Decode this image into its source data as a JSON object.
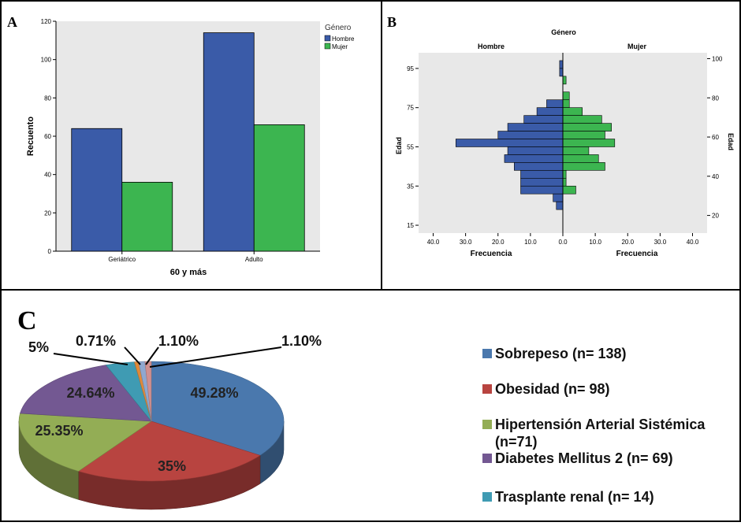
{
  "panels": {
    "a_letter": "A",
    "b_letter": "B",
    "c_letter": "C"
  },
  "chart_data": [
    {
      "type": "bar",
      "panel": "A",
      "categories": [
        "Geriátrico",
        "Adulto"
      ],
      "series": [
        {
          "name": "Hombre",
          "values": [
            64,
            114
          ],
          "color": "#3a5ba8"
        },
        {
          "name": "Mujer",
          "values": [
            36,
            66
          ],
          "color": "#3cb550"
        }
      ],
      "xlabel": "60 y más",
      "ylabel": "Recuento",
      "ylim": [
        0,
        120
      ],
      "yticks": [
        0,
        20,
        40,
        60,
        80,
        100,
        120
      ],
      "legend_title": "Género",
      "legend_position": "top-right",
      "plot_background": "#e8e8e8"
    },
    {
      "type": "bar",
      "subtype": "population-pyramid",
      "panel": "B",
      "title": "Género",
      "left_group": "Hombre",
      "right_group": "Mujer",
      "ages": [
        97,
        93,
        89,
        85,
        81,
        77,
        73,
        69,
        65,
        61,
        57,
        53,
        49,
        45,
        41,
        37,
        33,
        29,
        25,
        21
      ],
      "series": [
        {
          "name": "Hombre",
          "values": [
            1,
            1,
            0,
            0,
            0,
            5,
            8,
            12,
            17,
            20,
            33,
            17,
            18,
            15,
            13,
            13,
            13,
            3,
            2,
            0
          ],
          "color": "#3a5ba8"
        },
        {
          "name": "Mujer",
          "values": [
            0,
            0,
            1,
            0,
            2,
            2,
            6,
            12,
            15,
            13,
            16,
            8,
            11,
            13,
            1,
            1,
            4,
            0,
            0,
            0
          ],
          "color": "#3cb550"
        }
      ],
      "left_axis_ticks": [
        "95",
        "75",
        "55",
        "35",
        "15"
      ],
      "right_axis_ticks": [
        "100",
        "80",
        "60",
        "40",
        "20"
      ],
      "ylabel_left": "Edad",
      "ylabel_right": "Edad",
      "x_ticks_left": [
        "40.0",
        "30.0",
        "20.0",
        "10.0",
        "0.0"
      ],
      "x_ticks_right": [
        "0.0",
        "10.0",
        "20.0",
        "30.0",
        "40.0"
      ],
      "xlabel_left": "Frecuencia",
      "xlabel_right": "Frecuencia",
      "xlim": [
        0,
        40
      ],
      "plot_background": "#e8e8e8"
    },
    {
      "type": "pie",
      "panel": "C",
      "style": "3d",
      "slices": [
        {
          "label": "49.28%",
          "value": 49.28,
          "color": "#4a78ad"
        },
        {
          "label": "35%",
          "value": 35,
          "color": "#b84440"
        },
        {
          "label": "25.35%",
          "value": 25.35,
          "color": "#93ad55"
        },
        {
          "label": "24.64%",
          "value": 24.64,
          "color": "#735892"
        },
        {
          "label": "5%",
          "value": 5,
          "color": "#3f9bb3"
        },
        {
          "label": "0.71%",
          "value": 0.71,
          "color": "#e08a3a"
        },
        {
          "label": "1.10%",
          "value": 1.1,
          "color": "#8fa8d0"
        },
        {
          "label": "1.10%",
          "value": 1.1,
          "color": "#d09090"
        }
      ],
      "legend": [
        {
          "label": "Sobrepeso (n= 138)",
          "color": "#4a78ad"
        },
        {
          "label": "Obesidad (n= 98)",
          "color": "#b84440"
        },
        {
          "label": "Hipertensión Arterial Sistémica",
          "label_line2": "(n=71)",
          "color": "#93ad55"
        },
        {
          "label": "Diabetes Mellitus 2 (n= 69)",
          "color": "#735892"
        },
        {
          "label": "Trasplante renal (n= 14)",
          "color": "#3f9bb3"
        }
      ],
      "legend_position": "right"
    }
  ]
}
